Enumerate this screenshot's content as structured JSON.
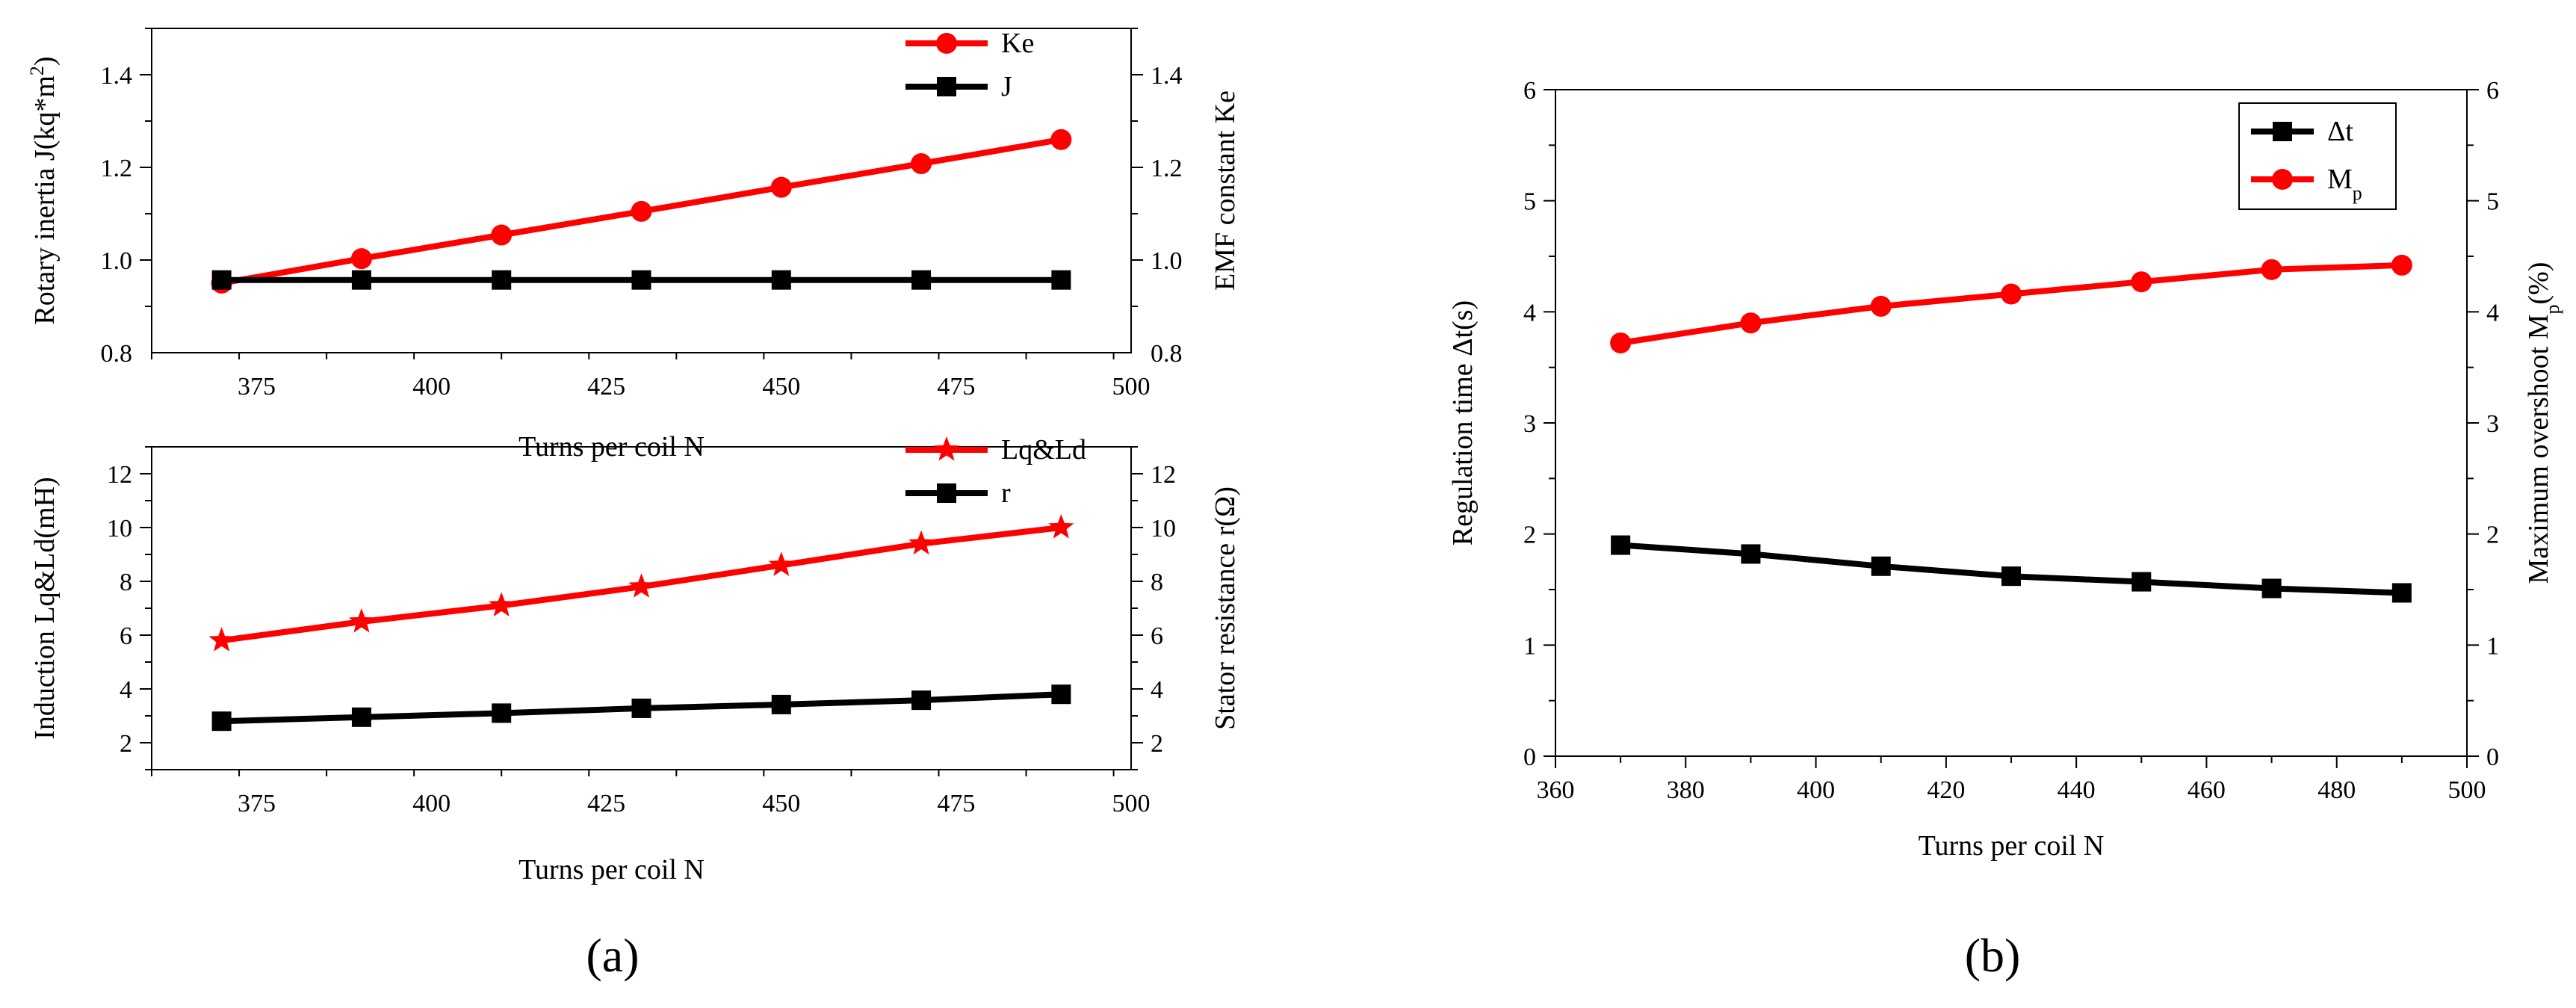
{
  "colors": {
    "red": "#ff0000",
    "black": "#000000"
  },
  "panels": {
    "a_label": "(a)",
    "b_label": "(b)"
  },
  "chart_data": [
    {
      "id": "a_top",
      "type": "line",
      "x": [
        370,
        390,
        410,
        430,
        450,
        470,
        490
      ],
      "xlim": [
        360,
        500
      ],
      "xticks": [
        "375",
        "400",
        "425",
        "450",
        "475",
        "500"
      ],
      "xlabel": "Turns per coil N",
      "ylabel_left": "Rotary inertia J(kq*m",
      "ylabel_left_sup": "2",
      "ylabel_left_end": ")",
      "ylabel_right": "EMF constant Ke",
      "ylim": [
        0.8,
        1.5
      ],
      "yticks_left": [
        "0.8",
        "1.0",
        "1.2",
        "1.4"
      ],
      "yticks_right": [
        "0.8",
        "1.0",
        "1.2",
        "1.4"
      ],
      "legend_position": "top-right",
      "series": [
        {
          "name": "Ke",
          "color": "red",
          "marker": "circle",
          "values": [
            0.95,
            1.003,
            1.054,
            1.105,
            1.157,
            1.208,
            1.26
          ]
        },
        {
          "name": "J",
          "color": "black",
          "marker": "square",
          "values": [
            0.957,
            0.957,
            0.957,
            0.957,
            0.957,
            0.957,
            0.957
          ]
        }
      ]
    },
    {
      "id": "a_bottom",
      "type": "line",
      "x": [
        370,
        390,
        410,
        430,
        450,
        470,
        490
      ],
      "xlim": [
        360,
        500
      ],
      "xticks": [
        "375",
        "400",
        "425",
        "450",
        "475",
        "500"
      ],
      "xlabel": "Turns per coil N",
      "ylabel_left": "Induction Lq&Ld(mH)",
      "ylabel_right": "Stator resistance r(Ω)",
      "ylim": [
        1,
        13
      ],
      "yticks_left": [
        "2",
        "4",
        "6",
        "8",
        "10",
        "12"
      ],
      "yticks_right": [
        "2",
        "4",
        "6",
        "8",
        "10",
        "12"
      ],
      "legend_position": "top-right",
      "series": [
        {
          "name": "Lq&Ld",
          "color": "red",
          "marker": "star",
          "values": [
            5.8,
            6.5,
            7.1,
            7.8,
            8.6,
            9.4,
            10.0
          ]
        },
        {
          "name": "r",
          "color": "black",
          "marker": "square",
          "values": [
            2.8,
            2.95,
            3.1,
            3.28,
            3.42,
            3.58,
            3.8
          ]
        }
      ]
    },
    {
      "id": "b",
      "type": "line",
      "x": [
        370,
        390,
        410,
        430,
        450,
        470,
        490
      ],
      "xlim": [
        360,
        500
      ],
      "xticks": [
        "360",
        "380",
        "400",
        "420",
        "440",
        "460",
        "480",
        "500"
      ],
      "xlabel": "Turns per coil N",
      "ylabel_left": "Regulation time Δt(s)",
      "ylabel_right": "Maximum overshoot M",
      "ylabel_right_sub": "p",
      "ylabel_right_end": "(%)",
      "ylim": [
        0,
        6
      ],
      "yticks_left": [
        "0",
        "1",
        "2",
        "3",
        "4",
        "5",
        "6"
      ],
      "yticks_right": [
        "0",
        "1",
        "2",
        "3",
        "4",
        "5",
        "6"
      ],
      "legend_position": "top-right",
      "series": [
        {
          "name": "Δt",
          "color": "black",
          "marker": "square",
          "values": [
            1.9,
            1.82,
            1.71,
            1.62,
            1.57,
            1.51,
            1.47
          ]
        },
        {
          "name": "M",
          "name_sub": "p",
          "color": "red",
          "marker": "circle",
          "values": [
            3.72,
            3.9,
            4.05,
            4.16,
            4.27,
            4.38,
            4.42
          ]
        }
      ]
    }
  ]
}
